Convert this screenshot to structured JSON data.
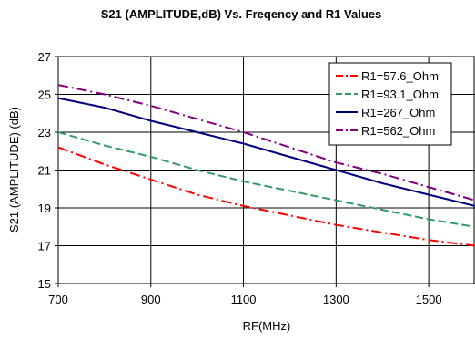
{
  "chart_data": {
    "type": "line",
    "title": "S21  (AMPLITUDE,dB)  Vs. Freqency and R1 Values",
    "xlabel": "RF(MHz)",
    "ylabel": "S21  (AMPLITUDE) (dB)",
    "xlim": [
      700,
      1600
    ],
    "ylim": [
      15,
      27
    ],
    "x_ticks": [
      700,
      900,
      1100,
      1300,
      1500
    ],
    "y_ticks": [
      15,
      17,
      19,
      21,
      23,
      25,
      27
    ],
    "grid": true,
    "legend_position": "top-right",
    "x": [
      700,
      800,
      900,
      1000,
      1100,
      1200,
      1300,
      1400,
      1500,
      1600
    ],
    "series": [
      {
        "name": "R1=57.6_Ohm",
        "color": "#ff0000",
        "dash": "dash-dot",
        "values": [
          22.2,
          21.3,
          20.5,
          19.7,
          19.1,
          18.6,
          18.1,
          17.7,
          17.3,
          17.0
        ]
      },
      {
        "name": "R1=93.1_Ohm",
        "color": "#339966",
        "dash": "dash",
        "values": [
          23.0,
          22.3,
          21.7,
          21.0,
          20.4,
          19.9,
          19.4,
          18.9,
          18.4,
          18.0
        ]
      },
      {
        "name": "R1=267_Ohm",
        "color": "#000080",
        "dash": "solid",
        "values": [
          24.8,
          24.3,
          23.6,
          23.0,
          22.4,
          21.7,
          21.0,
          20.3,
          19.7,
          19.1
        ]
      },
      {
        "name": "R1=562_Ohm",
        "color": "#800080",
        "dash": "dash-dot",
        "values": [
          25.5,
          25.0,
          24.4,
          23.7,
          23.0,
          22.2,
          21.4,
          20.8,
          20.1,
          19.4
        ]
      }
    ]
  }
}
